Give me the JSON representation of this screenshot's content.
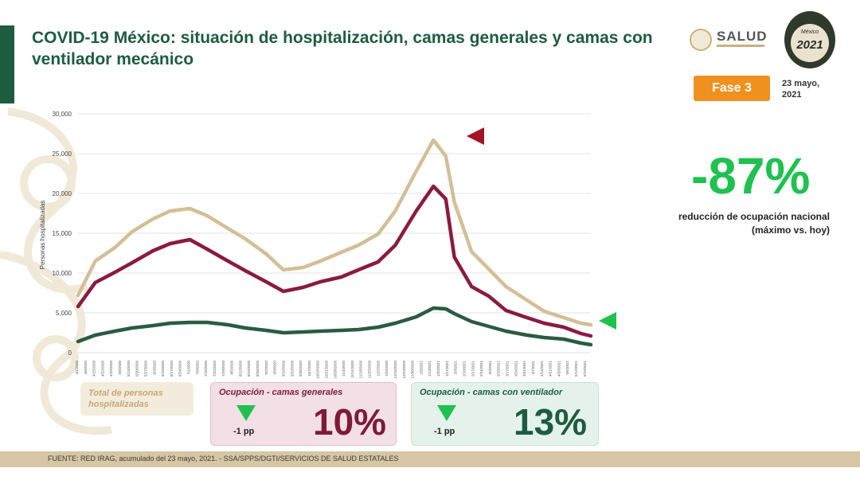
{
  "header": {
    "title": "COVID-19 México: situación de hospitalización, camas generales y camas con ventilador mecánico",
    "salud_label": "SALUD",
    "logo_year": "2021",
    "logo_country": "México",
    "phase_label": "Fase 3",
    "date_line1": "23 mayo,",
    "date_line2": "2021"
  },
  "summary": {
    "reduction_value": "-87%",
    "reduction_label_line1": "reducción de ocupación nacional",
    "reduction_label_line2": "(máximo vs. hoy)"
  },
  "legend_boxes": {
    "total_label": "Total de personas hospitalizadas",
    "general_title": "Ocupación - camas generales",
    "general_change": "-1 pp",
    "general_pct": "10%",
    "ventilator_title": "Ocupación - camas con ventilador",
    "ventilator_change": "-1 pp",
    "ventilator_pct": "13%"
  },
  "footer": {
    "source": "FUENTE: RED IRAG, acumulado del 23 mayo, 2021. - SSA/SPPS/DGTI/SERVICIOS DE SALUD ESTATALES"
  },
  "colors": {
    "title_green": "#1d5c40",
    "total_tan": "#d3bf96",
    "general_maroon": "#8b1a40",
    "ventilator_green": "#2c5a43",
    "highlight_green": "#1fc14f",
    "phase_orange": "#f0901f",
    "peak_marker_red": "#a31426"
  },
  "chart_data": {
    "type": "line",
    "ylabel": "Personas hospitalizadas",
    "xlabel": "",
    "ylim": [
      0,
      30000
    ],
    "yticks": [
      0,
      5000,
      10000,
      15000,
      20000,
      25000,
      30000
    ],
    "ytick_labels": [
      "0",
      "5,000",
      "10,000",
      "15,000",
      "20,000",
      "25,000",
      "30,000"
    ],
    "x": [
      "2020-04-01",
      "2020-04-15",
      "2020-05-01",
      "2020-05-15",
      "2020-06-01",
      "2020-06-15",
      "2020-07-01",
      "2020-07-15",
      "2020-08-01",
      "2020-08-15",
      "2020-09-01",
      "2020-09-15",
      "2020-10-01",
      "2020-10-15",
      "2020-11-01",
      "2020-11-15",
      "2020-12-01",
      "2020-12-15",
      "2021-01-01",
      "2021-01-15",
      "2021-01-25",
      "2021-02-01",
      "2021-02-15",
      "2021-03-01",
      "2021-03-15",
      "2021-04-01",
      "2021-04-15",
      "2021-05-01",
      "2021-05-15",
      "2021-05-23"
    ],
    "series": [
      {
        "name": "Total de personas hospitalizadas",
        "values": [
          7200,
          11500,
          13200,
          15200,
          16800,
          17800,
          18100,
          17200,
          15600,
          14300,
          12400,
          10400,
          10700,
          11500,
          12600,
          13500,
          14900,
          17800,
          22800,
          26700,
          24700,
          18900,
          12700,
          10500,
          8300,
          6600,
          5200,
          4400,
          3700,
          3500
        ]
      },
      {
        "name": "Ocupación - camas generales",
        "values": [
          5800,
          8800,
          10100,
          11300,
          12800,
          13700,
          14200,
          13000,
          11500,
          10300,
          8900,
          7700,
          8200,
          8900,
          9500,
          10400,
          11400,
          13500,
          17800,
          20900,
          19300,
          12000,
          8300,
          7100,
          5300,
          4400,
          3700,
          3200,
          2400,
          2100
        ]
      },
      {
        "name": "Ocupación - camas con ventilador",
        "values": [
          1400,
          2200,
          2700,
          3100,
          3400,
          3700,
          3800,
          3800,
          3500,
          3100,
          2800,
          2500,
          2600,
          2700,
          2800,
          2900,
          3200,
          3700,
          4500,
          5600,
          5500,
          4900,
          3900,
          3300,
          2700,
          2200,
          1900,
          1700,
          1200,
          1000
        ]
      }
    ],
    "grid": true,
    "legend": "bottom"
  }
}
